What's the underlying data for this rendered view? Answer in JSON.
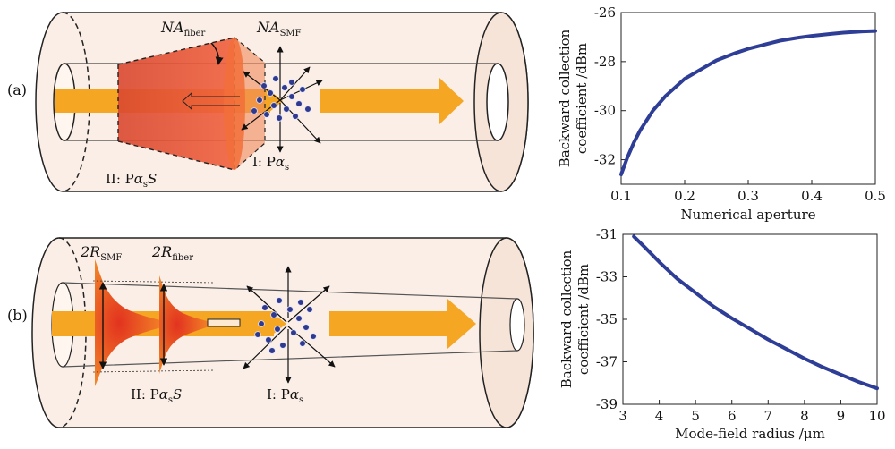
{
  "panels": {
    "a_label": "(a)",
    "b_label": "(b)",
    "a": {
      "na_fiber_main": "NA",
      "na_fiber_sub": "fiber",
      "na_smf_main": "NA",
      "na_smf_sub": "SMF",
      "region2_prefix": "II: P",
      "region2_alpha": "α",
      "region2_sub": "s",
      "region2_suffix": "S",
      "region1_prefix": "I: P",
      "region1_alpha": "α",
      "region1_sub": "s"
    },
    "b": {
      "r_smf_main": "2R",
      "r_smf_sub": "SMF",
      "r_fiber_main": "2R",
      "r_fiber_sub": "fiber",
      "region2_prefix": "II: P",
      "region2_alpha": "α",
      "region2_sub": "s",
      "region2_suffix": "S",
      "region1_prefix": "I: P",
      "region1_alpha": "α",
      "region1_sub": "s"
    }
  },
  "colors": {
    "beam": "#f5a623",
    "curve": "#2e3d96",
    "cone": "#e8452c",
    "cylinder_fill": "#fbeee6"
  },
  "chart_data": [
    {
      "type": "line",
      "title": "",
      "xlabel": "Numerical aperture",
      "ylabel_line1": "Backward collection",
      "ylabel_line2": "coefficient /dBm",
      "xlim": [
        0.1,
        0.5
      ],
      "ylim": [
        -33,
        -26
      ],
      "xticks": [
        0.1,
        0.2,
        0.3,
        0.4,
        0.5
      ],
      "xtick_labels": [
        "0.1",
        "0.2",
        "0.3",
        "0.4",
        "0.5"
      ],
      "yticks": [
        -32,
        -30,
        -28,
        -26
      ],
      "ytick_labels": [
        "-32",
        "-30",
        "-28",
        "-26"
      ],
      "series": [
        {
          "name": "Backward collection coefficient",
          "x": [
            0.1,
            0.11,
            0.12,
            0.13,
            0.15,
            0.17,
            0.2,
            0.23,
            0.25,
            0.28,
            0.3,
            0.33,
            0.35,
            0.38,
            0.4,
            0.43,
            0.45,
            0.48,
            0.5
          ],
          "y": [
            -32.6,
            -31.9,
            -31.3,
            -30.8,
            -30.0,
            -29.4,
            -28.7,
            -28.25,
            -27.95,
            -27.65,
            -27.48,
            -27.28,
            -27.15,
            -27.02,
            -26.95,
            -26.87,
            -26.82,
            -26.77,
            -26.75
          ]
        }
      ]
    },
    {
      "type": "line",
      "title": "",
      "xlabel": "Mode-field radius /μm",
      "ylabel_line1": "Backward collection",
      "ylabel_line2": "coefficient /dBm",
      "xlim": [
        3,
        10
      ],
      "ylim": [
        -39,
        -31
      ],
      "xticks": [
        3,
        4,
        5,
        6,
        7,
        8,
        9,
        10
      ],
      "xtick_labels": [
        "3",
        "4",
        "5",
        "6",
        "7",
        "8",
        "9",
        "10"
      ],
      "yticks": [
        -39,
        -37,
        -35,
        -33,
        -31
      ],
      "ytick_labels": [
        "-39",
        "-37",
        "-35",
        "-33",
        "-31"
      ],
      "series": [
        {
          "name": "Backward collection coefficient",
          "x": [
            3.3,
            3.6,
            4,
            4.5,
            5,
            5.5,
            6,
            6.5,
            7,
            7.5,
            8,
            8.5,
            9,
            9.5,
            10
          ],
          "y": [
            -31.1,
            -31.6,
            -32.3,
            -33.1,
            -33.75,
            -34.4,
            -34.95,
            -35.45,
            -35.95,
            -36.4,
            -36.85,
            -37.25,
            -37.6,
            -37.95,
            -38.25
          ]
        }
      ]
    }
  ]
}
